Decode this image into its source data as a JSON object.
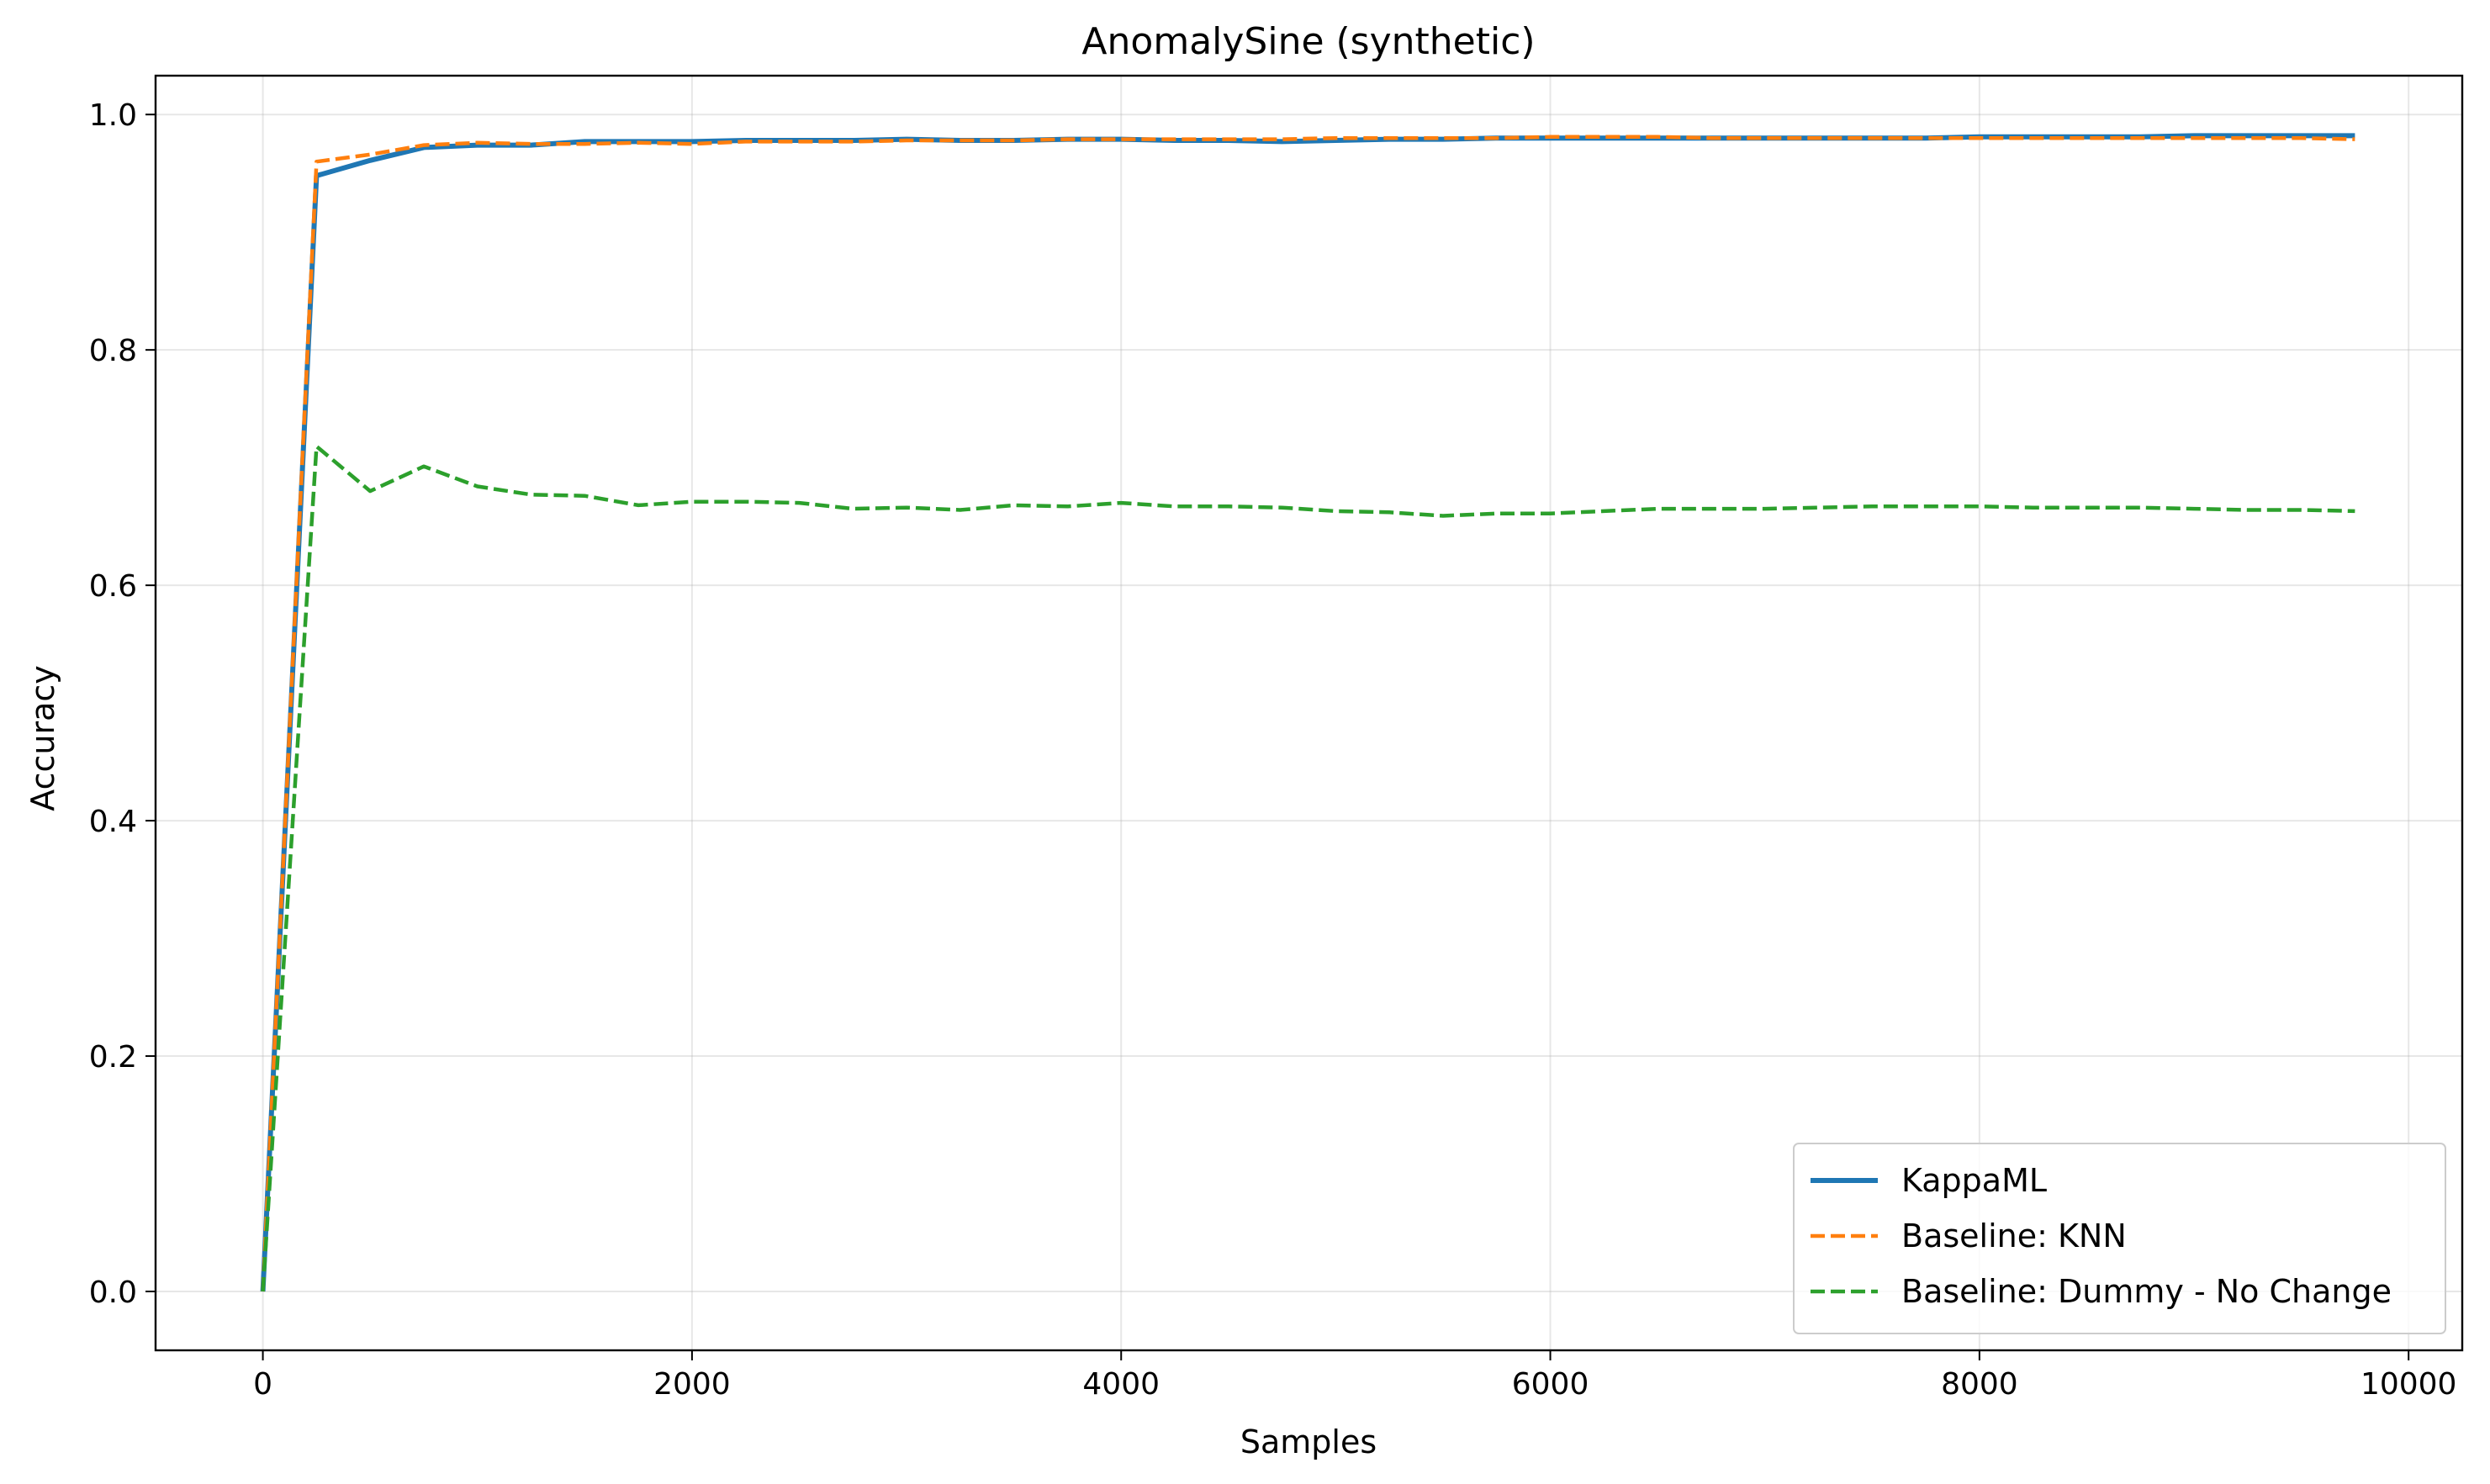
{
  "chart_data": {
    "type": "line",
    "title": "AnomalySine (synthetic)",
    "xlabel": "Samples",
    "ylabel": "Accuracy",
    "xlim": [
      -500,
      10250
    ],
    "ylim": [
      -0.05,
      1.033
    ],
    "xticks": [
      0,
      2000,
      4000,
      6000,
      8000,
      10000
    ],
    "xtick_labels": [
      "0",
      "2000",
      "4000",
      "6000",
      "8000",
      "10000"
    ],
    "yticks": [
      0.0,
      0.2,
      0.4,
      0.6,
      0.8,
      1.0
    ],
    "ytick_labels": [
      "0.0",
      "0.2",
      "0.4",
      "0.6",
      "0.8",
      "1.0"
    ],
    "grid": true,
    "legend_position": "lower-right",
    "x": [
      0,
      250,
      500,
      750,
      1000,
      1250,
      1500,
      1750,
      2000,
      2250,
      2500,
      2750,
      3000,
      3250,
      3500,
      3750,
      4000,
      4250,
      4500,
      4750,
      5000,
      5250,
      5500,
      5750,
      6000,
      6250,
      6500,
      6750,
      7000,
      7250,
      7500,
      7750,
      8000,
      8250,
      8500,
      8750,
      9000,
      9250,
      9500,
      9750
    ],
    "series": [
      {
        "name": "KappaML",
        "color": "#1f77b4",
        "style": "solid",
        "values": [
          0.0,
          0.948,
          0.961,
          0.972,
          0.974,
          0.974,
          0.977,
          0.977,
          0.977,
          0.978,
          0.978,
          0.978,
          0.979,
          0.978,
          0.978,
          0.979,
          0.979,
          0.978,
          0.978,
          0.977,
          0.978,
          0.979,
          0.979,
          0.98,
          0.98,
          0.98,
          0.98,
          0.98,
          0.98,
          0.98,
          0.98,
          0.98,
          0.981,
          0.981,
          0.981,
          0.981,
          0.982,
          0.982,
          0.982,
          0.982
        ]
      },
      {
        "name": "Baseline: KNN",
        "color": "#ff7f0e",
        "style": "dashed",
        "values": [
          0.0,
          0.96,
          0.966,
          0.974,
          0.976,
          0.975,
          0.975,
          0.976,
          0.975,
          0.977,
          0.977,
          0.977,
          0.978,
          0.978,
          0.978,
          0.979,
          0.979,
          0.979,
          0.979,
          0.979,
          0.98,
          0.98,
          0.98,
          0.98,
          0.981,
          0.981,
          0.981,
          0.98,
          0.98,
          0.98,
          0.98,
          0.98,
          0.98,
          0.98,
          0.98,
          0.98,
          0.98,
          0.98,
          0.98,
          0.979
        ]
      },
      {
        "name": "Baseline: Dummy - No Change",
        "color": "#2ca02c",
        "style": "dashed",
        "values": [
          0.0,
          0.718,
          0.68,
          0.701,
          0.684,
          0.677,
          0.676,
          0.668,
          0.671,
          0.671,
          0.67,
          0.665,
          0.666,
          0.664,
          0.668,
          0.667,
          0.67,
          0.667,
          0.667,
          0.666,
          0.663,
          0.662,
          0.659,
          0.661,
          0.661,
          0.663,
          0.665,
          0.665,
          0.665,
          0.666,
          0.667,
          0.667,
          0.667,
          0.666,
          0.666,
          0.666,
          0.665,
          0.664,
          0.664,
          0.663
        ]
      }
    ]
  }
}
